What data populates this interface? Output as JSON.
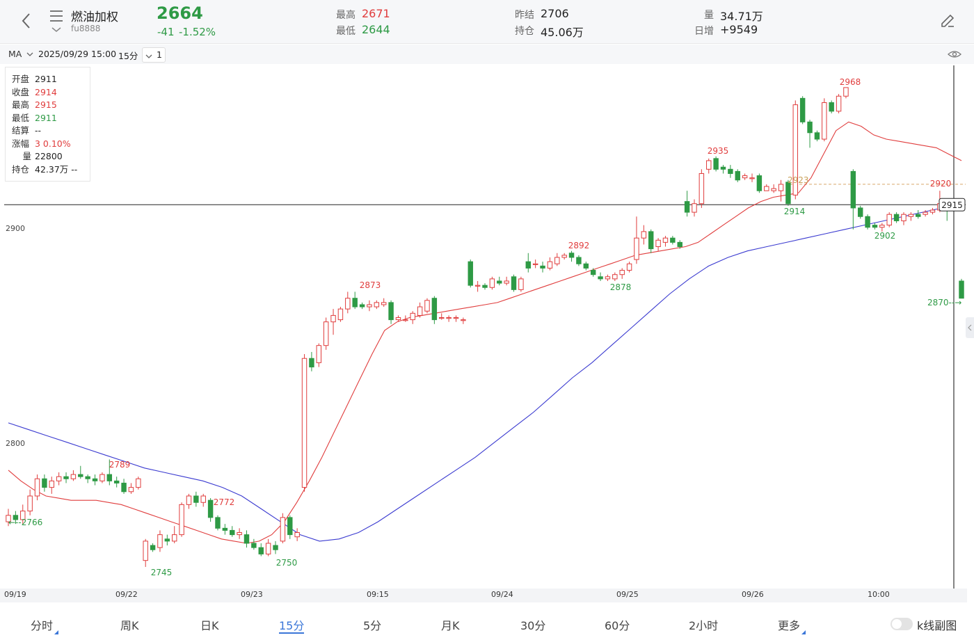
{
  "header": {
    "title": "燃油加权",
    "code": "fu8888",
    "last_price": "2664",
    "change": "-41",
    "change_pct": "-1.52%",
    "high_label": "最高",
    "high_value": "2671",
    "low_label": "最低",
    "low_value": "2644",
    "prev_settle_label": "昨结",
    "prev_settle_value": "2706",
    "open_interest_label": "持仓",
    "open_interest_value": "45.06万",
    "volume_label": "量",
    "volume_value": "34.71万",
    "daily_incr_label": "日增",
    "daily_incr_value": "+9549"
  },
  "toolbar": {
    "indicator": "MA",
    "datetime": "2025/09/29 15:00",
    "period": "15分",
    "count": "1"
  },
  "info_panel": [
    {
      "key": "开盘",
      "value": "2911",
      "color": "#222222"
    },
    {
      "key": "收盘",
      "value": "2914",
      "color": "#e03c3c"
    },
    {
      "key": "最高",
      "value": "2915",
      "color": "#e03c3c"
    },
    {
      "key": "最低",
      "value": "2911",
      "color": "#2e9a45"
    },
    {
      "key": "结算",
      "value": "--",
      "color": "#222222"
    },
    {
      "key": "涨幅",
      "value": "3  0.10%",
      "color": "#e03c3c"
    },
    {
      "key": "量",
      "value": "22800",
      "color": "#222222"
    },
    {
      "key": "持仓",
      "value": "42.37万  --",
      "color": "#222222"
    }
  ],
  "tabs": [
    {
      "label": "分时",
      "active": false,
      "more": true
    },
    {
      "label": "周K",
      "active": false,
      "more": false
    },
    {
      "label": "日K",
      "active": false,
      "more": false
    },
    {
      "label": "15分",
      "active": true,
      "more": false
    },
    {
      "label": "5分",
      "active": false,
      "more": false
    },
    {
      "label": "月K",
      "active": false,
      "more": false
    },
    {
      "label": "30分",
      "active": false,
      "more": false
    },
    {
      "label": "60分",
      "active": false,
      "more": false
    },
    {
      "label": "2小时",
      "active": false,
      "more": false
    },
    {
      "label": "更多",
      "active": false,
      "more": true
    }
  ],
  "subchart_toggle_label": "k线副图",
  "colors": {
    "up": "#e03c3c",
    "down": "#2e9a45",
    "ma_fast": "#e03c3c",
    "ma_slow": "#3a3ad0",
    "accent": "#3a76d8"
  },
  "chart_data": {
    "type": "candlestick",
    "y_ticks": [
      2800,
      2900
    ],
    "ylim": [
      2728,
      2992
    ],
    "x_ticks": [
      "09/19",
      "09/22",
      "09/23",
      "09:15",
      "09/24",
      "09/25",
      "09/26",
      "10:00"
    ],
    "current_price": "2915",
    "ref_line_label": "2923",
    "price_annotations": [
      {
        "label": "2766"
      },
      {
        "label": "2789"
      },
      {
        "label": "2745"
      },
      {
        "label": "2772"
      },
      {
        "label": "2750"
      },
      {
        "label": "2873"
      },
      {
        "label": "2892"
      },
      {
        "label": "2878"
      },
      {
        "label": "2935"
      },
      {
        "label": "2914"
      },
      {
        "label": "2968"
      },
      {
        "label": "2902"
      },
      {
        "label": "2920"
      },
      {
        "label": "2870"
      }
    ],
    "candles": [
      {
        "o": 2766,
        "c": 2769,
        "h": 2772,
        "l": 2764
      },
      {
        "o": 2769,
        "c": 2767,
        "h": 2771,
        "l": 2765
      },
      {
        "o": 2767,
        "c": 2771,
        "h": 2774,
        "l": 2765
      },
      {
        "o": 2771,
        "c": 2778,
        "h": 2781,
        "l": 2769
      },
      {
        "o": 2778,
        "c": 2786,
        "h": 2788,
        "l": 2776
      },
      {
        "o": 2786,
        "c": 2782,
        "h": 2788,
        "l": 2780
      },
      {
        "o": 2782,
        "c": 2785,
        "h": 2787,
        "l": 2779
      },
      {
        "o": 2785,
        "c": 2787,
        "h": 2789,
        "l": 2783
      },
      {
        "o": 2787,
        "c": 2786,
        "h": 2789,
        "l": 2784
      },
      {
        "o": 2786,
        "c": 2788,
        "h": 2790,
        "l": 2785
      },
      {
        "o": 2788,
        "c": 2787,
        "h": 2792,
        "l": 2786
      },
      {
        "o": 2787,
        "c": 2786,
        "h": 2788,
        "l": 2784
      },
      {
        "o": 2786,
        "c": 2785,
        "h": 2788,
        "l": 2783
      },
      {
        "o": 2785,
        "c": 2788,
        "h": 2789,
        "l": 2784
      },
      {
        "o": 2788,
        "c": 2785,
        "h": 2795,
        "l": 2783
      },
      {
        "o": 2785,
        "c": 2784,
        "h": 2787,
        "l": 2782
      },
      {
        "o": 2784,
        "c": 2780,
        "h": 2786,
        "l": 2779
      },
      {
        "o": 2780,
        "c": 2782,
        "h": 2784,
        "l": 2779
      },
      {
        "o": 2782,
        "c": 2786,
        "h": 2787,
        "l": 2781
      },
      {
        "o": 2748,
        "c": 2757,
        "h": 2758,
        "l": 2745
      },
      {
        "o": 2755,
        "c": 2753,
        "h": 2756,
        "l": 2752
      },
      {
        "o": 2754,
        "c": 2760,
        "h": 2762,
        "l": 2752
      },
      {
        "o": 2758,
        "c": 2757,
        "h": 2760,
        "l": 2755
      },
      {
        "o": 2757,
        "c": 2760,
        "h": 2764,
        "l": 2756
      },
      {
        "o": 2760,
        "c": 2774,
        "h": 2775,
        "l": 2759
      },
      {
        "o": 2774,
        "c": 2778,
        "h": 2779,
        "l": 2772
      },
      {
        "o": 2778,
        "c": 2775,
        "h": 2780,
        "l": 2773
      },
      {
        "o": 2775,
        "c": 2778,
        "h": 2779,
        "l": 2773
      },
      {
        "o": 2776,
        "c": 2768,
        "h": 2777,
        "l": 2766
      },
      {
        "o": 2768,
        "c": 2763,
        "h": 2769,
        "l": 2762
      },
      {
        "o": 2763,
        "c": 2762,
        "h": 2765,
        "l": 2760
      },
      {
        "o": 2762,
        "c": 2760,
        "h": 2764,
        "l": 2759
      },
      {
        "o": 2760,
        "c": 2761,
        "h": 2763,
        "l": 2758
      },
      {
        "o": 2760,
        "c": 2756,
        "h": 2762,
        "l": 2754
      },
      {
        "o": 2756,
        "c": 2754,
        "h": 2758,
        "l": 2753
      },
      {
        "o": 2754,
        "c": 2751,
        "h": 2756,
        "l": 2750
      },
      {
        "o": 2751,
        "c": 2756,
        "h": 2758,
        "l": 2750
      },
      {
        "o": 2755,
        "c": 2753,
        "h": 2757,
        "l": 2751
      },
      {
        "o": 2757,
        "c": 2768,
        "h": 2770,
        "l": 2756
      },
      {
        "o": 2768,
        "c": 2760,
        "h": 2769,
        "l": 2758
      },
      {
        "o": 2759,
        "c": 2761,
        "h": 2763,
        "l": 2757
      },
      {
        "o": 2782,
        "c": 2842,
        "h": 2844,
        "l": 2780
      },
      {
        "o": 2842,
        "c": 2838,
        "h": 2845,
        "l": 2836
      },
      {
        "o": 2840,
        "c": 2848,
        "h": 2849,
        "l": 2838
      },
      {
        "o": 2848,
        "c": 2859,
        "h": 2861,
        "l": 2846
      },
      {
        "o": 2859,
        "c": 2862,
        "h": 2865,
        "l": 2853
      },
      {
        "o": 2860,
        "c": 2865,
        "h": 2866,
        "l": 2859
      },
      {
        "o": 2865,
        "c": 2870,
        "h": 2873,
        "l": 2863
      },
      {
        "o": 2870,
        "c": 2866,
        "h": 2873,
        "l": 2865
      },
      {
        "o": 2867,
        "c": 2866,
        "h": 2868,
        "l": 2865
      },
      {
        "o": 2866,
        "c": 2867,
        "h": 2869,
        "l": 2864
      },
      {
        "o": 2866,
        "c": 2868,
        "h": 2869,
        "l": 2865
      },
      {
        "o": 2867,
        "c": 2868,
        "h": 2870,
        "l": 2866
      },
      {
        "o": 2868,
        "c": 2860,
        "h": 2869,
        "l": 2858
      },
      {
        "o": 2860,
        "c": 2861,
        "h": 2862,
        "l": 2859
      },
      {
        "o": 2860,
        "c": 2860,
        "h": 2862,
        "l": 2859
      },
      {
        "o": 2860,
        "c": 2863,
        "h": 2864,
        "l": 2858
      },
      {
        "o": 2862,
        "c": 2866,
        "h": 2868,
        "l": 2861
      },
      {
        "o": 2864,
        "c": 2869,
        "h": 2870,
        "l": 2863
      },
      {
        "o": 2870,
        "c": 2860,
        "h": 2871,
        "l": 2858
      },
      {
        "o": 2861,
        "c": 2861,
        "h": 2863,
        "l": 2860
      },
      {
        "o": 2861,
        "c": 2861,
        "h": 2862,
        "l": 2859
      },
      {
        "o": 2861,
        "c": 2861,
        "h": 2862,
        "l": 2859
      },
      {
        "o": 2860,
        "c": 2860,
        "h": 2861,
        "l": 2858
      },
      {
        "o": 2887,
        "c": 2876,
        "h": 2888,
        "l": 2875
      },
      {
        "o": 2876,
        "c": 2876,
        "h": 2878,
        "l": 2873
      },
      {
        "o": 2876,
        "c": 2875,
        "h": 2877,
        "l": 2874
      },
      {
        "o": 2875,
        "c": 2879,
        "h": 2880,
        "l": 2874
      },
      {
        "o": 2878,
        "c": 2877,
        "h": 2880,
        "l": 2876
      },
      {
        "o": 2877,
        "c": 2878,
        "h": 2880,
        "l": 2876
      },
      {
        "o": 2880,
        "c": 2874,
        "h": 2881,
        "l": 2873
      },
      {
        "o": 2874,
        "c": 2879,
        "h": 2880,
        "l": 2873
      },
      {
        "o": 2887,
        "c": 2884,
        "h": 2891,
        "l": 2882
      },
      {
        "o": 2886,
        "c": 2886,
        "h": 2888,
        "l": 2884
      },
      {
        "o": 2885,
        "c": 2884,
        "h": 2887,
        "l": 2882
      },
      {
        "o": 2884,
        "c": 2887,
        "h": 2889,
        "l": 2883
      },
      {
        "o": 2886,
        "c": 2889,
        "h": 2891,
        "l": 2885
      },
      {
        "o": 2889,
        "c": 2890,
        "h": 2891,
        "l": 2888
      },
      {
        "o": 2891,
        "c": 2889,
        "h": 2892,
        "l": 2887
      },
      {
        "o": 2889,
        "c": 2886,
        "h": 2890,
        "l": 2885
      },
      {
        "o": 2886,
        "c": 2884,
        "h": 2887,
        "l": 2883
      },
      {
        "o": 2883,
        "c": 2881,
        "h": 2884,
        "l": 2880
      },
      {
        "o": 2880,
        "c": 2879,
        "h": 2882,
        "l": 2878
      },
      {
        "o": 2879,
        "c": 2880,
        "h": 2881,
        "l": 2878
      },
      {
        "o": 2879,
        "c": 2881,
        "h": 2882,
        "l": 2878
      },
      {
        "o": 2881,
        "c": 2883,
        "h": 2884,
        "l": 2879
      },
      {
        "o": 2883,
        "c": 2886,
        "h": 2887,
        "l": 2882
      },
      {
        "o": 2888,
        "c": 2898,
        "h": 2908,
        "l": 2886
      },
      {
        "o": 2898,
        "c": 2901,
        "h": 2904,
        "l": 2895
      },
      {
        "o": 2901,
        "c": 2893,
        "h": 2902,
        "l": 2891
      },
      {
        "o": 2894,
        "c": 2897,
        "h": 2898,
        "l": 2892
      },
      {
        "o": 2896,
        "c": 2898,
        "h": 2899,
        "l": 2894
      },
      {
        "o": 2898,
        "c": 2896,
        "h": 2899,
        "l": 2895
      },
      {
        "o": 2896,
        "c": 2894,
        "h": 2897,
        "l": 2893
      },
      {
        "o": 2915,
        "c": 2910,
        "h": 2920,
        "l": 2908
      },
      {
        "o": 2910,
        "c": 2914,
        "h": 2916,
        "l": 2908
      },
      {
        "o": 2914,
        "c": 2928,
        "h": 2930,
        "l": 2912
      },
      {
        "o": 2930,
        "c": 2934,
        "h": 2935,
        "l": 2928
      },
      {
        "o": 2935,
        "c": 2930,
        "h": 2936,
        "l": 2929
      },
      {
        "o": 2931,
        "c": 2930,
        "h": 2932,
        "l": 2928
      },
      {
        "o": 2930,
        "c": 2928,
        "h": 2932,
        "l": 2926
      },
      {
        "o": 2929,
        "c": 2925,
        "h": 2930,
        "l": 2924
      },
      {
        "o": 2926,
        "c": 2927,
        "h": 2928,
        "l": 2925
      },
      {
        "o": 2926,
        "c": 2926,
        "h": 2928,
        "l": 2924
      },
      {
        "o": 2927,
        "c": 2920,
        "h": 2928,
        "l": 2919
      },
      {
        "o": 2920,
        "c": 2922,
        "h": 2923,
        "l": 2920
      },
      {
        "o": 2920,
        "c": 2921,
        "h": 2923,
        "l": 2919
      },
      {
        "o": 2920,
        "c": 2923,
        "h": 2925,
        "l": 2915
      },
      {
        "o": 2924,
        "c": 2914,
        "h": 2925,
        "l": 2913
      },
      {
        "o": 2918,
        "c": 2960,
        "h": 2962,
        "l": 2916
      },
      {
        "o": 2963,
        "c": 2952,
        "h": 2964,
        "l": 2951
      },
      {
        "o": 2952,
        "c": 2947,
        "h": 2953,
        "l": 2940
      },
      {
        "o": 2947,
        "c": 2944,
        "h": 2948,
        "l": 2943
      },
      {
        "o": 2944,
        "c": 2961,
        "h": 2963,
        "l": 2943
      },
      {
        "o": 2961,
        "c": 2957,
        "h": 2962,
        "l": 2956
      },
      {
        "o": 2957,
        "c": 2964,
        "h": 2965,
        "l": 2956
      },
      {
        "o": 2964,
        "c": 2968,
        "h": 2968,
        "l": 2963
      },
      {
        "o": 2929,
        "c": 2912,
        "h": 2930,
        "l": 2902
      },
      {
        "o": 2912,
        "c": 2908,
        "h": 2913,
        "l": 2907
      },
      {
        "o": 2908,
        "c": 2903,
        "h": 2909,
        "l": 2902
      },
      {
        "o": 2904,
        "c": 2903,
        "h": 2905,
        "l": 2902
      },
      {
        "o": 2903,
        "c": 2904,
        "h": 2905,
        "l": 2901
      },
      {
        "o": 2904,
        "c": 2909,
        "h": 2910,
        "l": 2903
      },
      {
        "o": 2909,
        "c": 2906,
        "h": 2910,
        "l": 2905
      },
      {
        "o": 2906,
        "c": 2909,
        "h": 2910,
        "l": 2904
      },
      {
        "o": 2908,
        "c": 2909,
        "h": 2910,
        "l": 2906
      },
      {
        "o": 2909,
        "c": 2908,
        "h": 2911,
        "l": 2907
      },
      {
        "o": 2909,
        "c": 2910,
        "h": 2911,
        "l": 2908
      },
      {
        "o": 2910,
        "c": 2911,
        "h": 2912,
        "l": 2909
      },
      {
        "o": 2911,
        "c": 2914,
        "h": 2920,
        "l": 2910
      },
      {
        "o": 2914,
        "c": 2912,
        "h": 2915,
        "l": 2906
      },
      {
        "o": 2911,
        "c": 2914,
        "h": 2915,
        "l": 2911
      },
      {
        "o": 2878,
        "c": 2870,
        "h": 2879,
        "l": 2870
      }
    ],
    "ma_fast": [
      2790,
      2785,
      2781,
      2778,
      2777,
      2776,
      2776,
      2776,
      2775,
      2774,
      2772,
      2770,
      2768,
      2766,
      2764,
      2762,
      2760,
      2758,
      2757,
      2756,
      2757,
      2760,
      2766,
      2775,
      2785,
      2796,
      2808,
      2820,
      2832,
      2844,
      2855,
      2859,
      2861,
      2862,
      2863,
      2864,
      2865,
      2866,
      2867,
      2868,
      2870,
      2872,
      2874,
      2876,
      2878,
      2880,
      2882,
      2884,
      2886,
      2888,
      2890,
      2891,
      2892,
      2893,
      2894,
      2896,
      2900,
      2904,
      2908,
      2912,
      2915,
      2917,
      2918,
      2919,
      2926,
      2937,
      2948,
      2952,
      2950,
      2946,
      2944,
      2943,
      2942,
      2941,
      2940,
      2937,
      2934
    ],
    "ma_slow": [
      2812,
      2809,
      2806,
      2803,
      2800,
      2797,
      2794,
      2791,
      2789,
      2787,
      2785,
      2782,
      2778,
      2772,
      2766,
      2760,
      2757,
      2758,
      2761,
      2766,
      2772,
      2778,
      2784,
      2790,
      2796,
      2803,
      2810,
      2817,
      2825,
      2833,
      2840,
      2848,
      2856,
      2864,
      2872,
      2879,
      2885,
      2889,
      2892,
      2894,
      2896,
      2898,
      2900,
      2902,
      2904,
      2906,
      2908,
      2910,
      2912,
      2914
    ],
    "last_label": "2870"
  }
}
